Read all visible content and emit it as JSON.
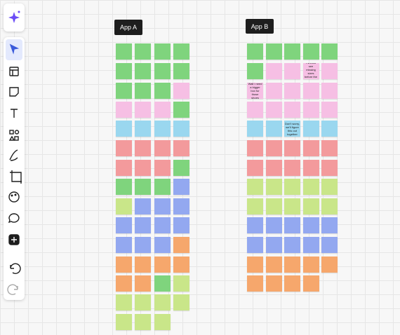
{
  "board": {
    "frames": [
      {
        "label": "App A"
      },
      {
        "label": "App B"
      }
    ],
    "notes": [
      {
        "text": "Wait i need a bigger box for those shoes"
      },
      {
        "text": "I should see missing sizes before the cart"
      },
      {
        "text": "Don't worry, we'll figure this out together"
      }
    ]
  }
}
